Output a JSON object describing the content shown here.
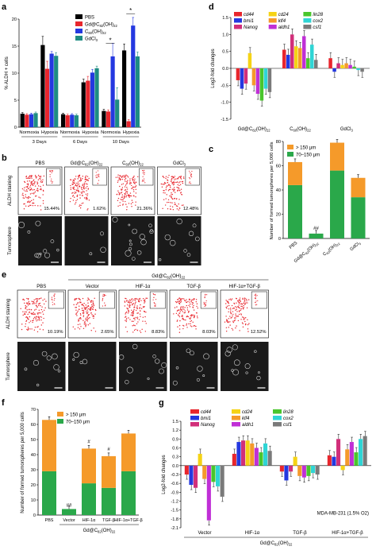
{
  "panel_labels": [
    "a",
    "b",
    "c",
    "d",
    "e",
    "f",
    "g"
  ],
  "colors": {
    "PBS": "#000000",
    "Gd": "#e8262d",
    "C60": "#2438e0",
    "GdCl3": "#1e8c83",
    "big": "#f59a2a",
    "small": "#2aa84a",
    "flow": "#e8262d"
  },
  "chart_data": [
    {
      "panel": "a",
      "type": "bar",
      "ylabel": "% ALDH + cells",
      "ylim": [
        0,
        20
      ],
      "yticks": [
        "0",
        "5",
        "10",
        "15",
        "20"
      ],
      "categories": [
        "Normoxia",
        "Hypoxia",
        "Normoxia",
        "Hypoxia",
        "Normoxia",
        "Hypoxia"
      ],
      "groups": [
        "3 Days",
        "6 Days",
        "10 Days"
      ],
      "series": [
        {
          "name": "PBS",
          "values": [
            2.5,
            15.2,
            2.4,
            8.3,
            3.0,
            14.2
          ]
        },
        {
          "name": "Gd@C82(OH)22",
          "values": [
            2.3,
            10.8,
            2.2,
            8.6,
            2.9,
            1.1
          ]
        },
        {
          "name": "C60(OH)22",
          "values": [
            2.4,
            13.6,
            2.3,
            10.1,
            13.1,
            18.8
          ]
        },
        {
          "name": "GdCl3",
          "values": [
            2.6,
            13.2,
            2.2,
            10.9,
            5.1,
            13.1
          ]
        }
      ],
      "errors": [
        [
          0.2,
          1.6,
          0.2,
          0.6,
          0.3,
          1.2
        ],
        [
          0.2,
          1.4,
          0.2,
          0.8,
          0.3,
          0.3
        ],
        [
          0.2,
          0.4,
          0.2,
          0.6,
          2.4,
          1.5
        ],
        [
          0.2,
          0.6,
          0.2,
          0.4,
          2.2,
          0.8
        ]
      ],
      "significance": [
        "*",
        "*"
      ]
    },
    {
      "panel": "c",
      "type": "bar",
      "ylabel": "Number of formed tumorspheres per 5,000 cells",
      "ylim": [
        0,
        80
      ],
      "yticks": [
        "0",
        "20",
        "40",
        "60",
        "80"
      ],
      "categories": [
        "PBS",
        "Gd@C82(OH)22",
        "C60(OH)22",
        "GdCl3"
      ],
      "legend": [
        "> 150 μm",
        "70–150 μm"
      ],
      "series": [
        {
          "name": "70–150 μm",
          "values": [
            44,
            4,
            56,
            34
          ]
        },
        {
          "name": "> 150 μm",
          "values": [
            19,
            0,
            23,
            16
          ]
        }
      ],
      "annotations": [
        "##",
        "*"
      ]
    },
    {
      "panel": "d",
      "type": "bar",
      "ylabel": "Log2-fold changes",
      "ylim": [
        -1.5,
        1.5
      ],
      "yticks": [
        "-1.5",
        "-1.0",
        "-0.5",
        "0.0",
        "0.5",
        "1.0",
        "1.5"
      ],
      "groups": [
        "Gd@C82(OH)22",
        "C60(OH)22",
        "GdCl3"
      ],
      "legend": [
        "cd44",
        "bmi1",
        "Nanog",
        "cd24",
        "klf4",
        "aldh1",
        "lin28",
        "cox2",
        "csf1"
      ],
      "series": [
        {
          "name": "cd44",
          "values": [
            -0.35,
            0.55,
            0.3
          ]
        },
        {
          "name": "bmi1",
          "values": [
            -0.6,
            0.4,
            -0.1
          ]
        },
        {
          "name": "Nanog",
          "values": [
            -0.45,
            1.0,
            0.15
          ]
        },
        {
          "name": "cd24",
          "values": [
            0.45,
            0.65,
            0.1
          ]
        },
        {
          "name": "klf4",
          "values": [
            -0.5,
            0.6,
            0.15
          ]
        },
        {
          "name": "aldh1",
          "values": [
            -0.75,
            0.95,
            0.1
          ]
        },
        {
          "name": "lin28",
          "values": [
            -0.95,
            0.3,
            0.05
          ]
        },
        {
          "name": "cox2",
          "values": [
            -0.6,
            0.7,
            -0.05
          ]
        },
        {
          "name": "csf1",
          "values": [
            -0.7,
            0.25,
            -0.1
          ]
        }
      ]
    },
    {
      "panel": "f",
      "type": "bar",
      "ylabel": "Number of formed tumorspheres per 5,000 cells",
      "ylim": [
        0,
        70
      ],
      "yticks": [
        "0",
        "10",
        "20",
        "30",
        "40",
        "50",
        "60",
        "70"
      ],
      "categories": [
        "PBS",
        "Vector",
        "HIF-1α",
        "TGF-β",
        "HIF-1α+TGF-β"
      ],
      "group_label": "Gd@C82(OH)22",
      "legend": [
        "> 150 μm",
        "70–150 μm"
      ],
      "series": [
        {
          "name": "70–150 μm",
          "values": [
            29,
            4,
            21,
            18,
            29
          ]
        },
        {
          "name": "> 150 μm",
          "values": [
            34,
            0,
            23,
            21,
            25
          ]
        }
      ],
      "annotations": [
        "##",
        "#",
        "#"
      ]
    },
    {
      "panel": "g",
      "type": "bar",
      "ylabel": "Log2-fold changes",
      "ylim": [
        -2.1,
        1.5
      ],
      "yticks": [
        "-2.1",
        "-1.8",
        "-1.5",
        "-1.2",
        "-0.9",
        "-0.6",
        "-0.3",
        "0.0",
        "0.3",
        "0.6",
        "0.9",
        "1.2",
        "1.5"
      ],
      "groups": [
        "Vector",
        "HIF-1α",
        "TGF-β",
        "HIF-1α+TGF-β"
      ],
      "group_label": "Gd@C82(OH)22",
      "note": "MDA-MB-231 (1.5% O2)",
      "legend": [
        "cd44",
        "bmi1",
        "Nanog",
        "cd24",
        "klf4",
        "aldh1",
        "lin28",
        "cox2",
        "csf1"
      ],
      "series": [
        {
          "name": "cd44",
          "values": [
            -0.3,
            0.4,
            -0.2,
            0.35
          ]
        },
        {
          "name": "bmi1",
          "values": [
            -0.65,
            0.8,
            -0.5,
            0.3
          ]
        },
        {
          "name": "Nanog",
          "values": [
            -0.75,
            0.85,
            -0.2,
            0.9
          ]
        },
        {
          "name": "cd24",
          "values": [
            0.4,
            0.85,
            0.3,
            -0.15
          ]
        },
        {
          "name": "klf4",
          "values": [
            -0.45,
            0.75,
            -0.35,
            0.55
          ]
        },
        {
          "name": "aldh1",
          "values": [
            -1.85,
            0.6,
            -0.4,
            0.8
          ]
        },
        {
          "name": "lin28",
          "values": [
            -0.55,
            0.45,
            -0.35,
            0.45
          ]
        },
        {
          "name": "cox2",
          "values": [
            -0.7,
            0.75,
            -0.25,
            0.9
          ]
        },
        {
          "name": "csf1",
          "values": [
            -1.05,
            0.5,
            -0.3,
            1.0
          ]
        }
      ]
    }
  ],
  "panel_b": {
    "row_labels": [
      "ALDH staining",
      "Tumorsphere"
    ],
    "columns": [
      "PBS",
      "Gd@C82(OH)22",
      "C60(OH)22",
      "GdCl3"
    ],
    "percents": [
      "15.44%",
      "1.62%",
      "21.36%",
      "12.48%"
    ]
  },
  "panel_e": {
    "row_labels": [
      "ALDH staining",
      "Tumorsphere"
    ],
    "group_label": "Gd@C82(OH)22",
    "columns": [
      "PBS",
      "Vector",
      "HIF-1α",
      "TGF-β",
      "HIF-1α+TGF-β"
    ],
    "percents": [
      "10.19%",
      "2.65%",
      "8.83%",
      "8.03%",
      "12.52%"
    ]
  },
  "gene_colors": {
    "cd44": "#e8262d",
    "bmi1": "#2438e0",
    "Nanog": "#d12f7a",
    "cd24": "#f5d315",
    "klf4": "#f59a2a",
    "aldh1": "#c02fd6",
    "lin28": "#49c62c",
    "cox2": "#2fd5d5",
    "csf1": "#7a7a7a"
  }
}
